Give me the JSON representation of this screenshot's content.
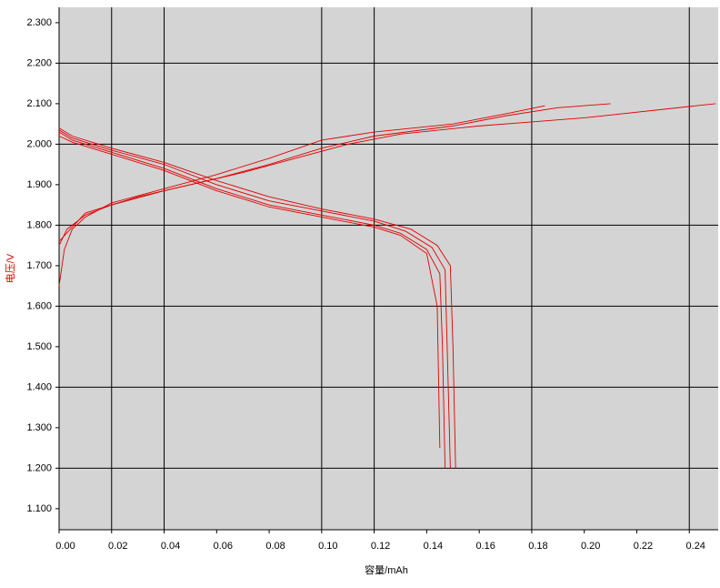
{
  "chart_data": {
    "type": "line",
    "x_label": "容量/mAh",
    "y_label": "电压/V",
    "xlim": [
      0,
      0.251
    ],
    "ylim": [
      1.048,
      2.338
    ],
    "xticks": [
      {
        "value": 0,
        "label": "0.00"
      },
      {
        "value": 0.02,
        "label": "0.02"
      },
      {
        "value": 0.04,
        "label": "0.04"
      },
      {
        "value": 0.06,
        "label": "0.06"
      },
      {
        "value": 0.08,
        "label": "0.08"
      },
      {
        "value": 0.1,
        "label": "0.10"
      },
      {
        "value": 0.12,
        "label": "0.12"
      },
      {
        "value": 0.14,
        "label": "0.14"
      },
      {
        "value": 0.16,
        "label": "0.16"
      },
      {
        "value": 0.18,
        "label": "0.18"
      },
      {
        "value": 0.2,
        "label": "0.20"
      },
      {
        "value": 0.22,
        "label": "0.22"
      },
      {
        "value": 0.24,
        "label": "0.24"
      }
    ],
    "yticks": [
      {
        "value": 1.1,
        "label": "1.100"
      },
      {
        "value": 1.2,
        "label": "1.200"
      },
      {
        "value": 1.3,
        "label": "1.300"
      },
      {
        "value": 1.4,
        "label": "1.400"
      },
      {
        "value": 1.5,
        "label": "1.500"
      },
      {
        "value": 1.6,
        "label": "1.600"
      },
      {
        "value": 1.7,
        "label": "1.700"
      },
      {
        "value": 1.8,
        "label": "1.800"
      },
      {
        "value": 1.9,
        "label": "1.900"
      },
      {
        "value": 2.0,
        "label": "2.000"
      },
      {
        "value": 2.1,
        "label": "2.100"
      },
      {
        "value": 2.2,
        "label": "2.200"
      },
      {
        "value": 2.3,
        "label": "2.300"
      }
    ],
    "x_grid": [
      0.02,
      0.04,
      0.1,
      0.12,
      0.18,
      0.24
    ],
    "y_grid": [
      1.2,
      1.4,
      1.6,
      1.8,
      2.0,
      2.2
    ],
    "series": [
      {
        "color": "#e00000",
        "x": [
          0,
          0.002,
          0.005,
          0.01,
          0.02,
          0.04,
          0.06,
          0.08,
          0.1,
          0.12,
          0.15,
          0.17,
          0.185
        ],
        "values": [
          1.65,
          1.74,
          1.79,
          1.82,
          1.855,
          1.89,
          1.925,
          1.965,
          2.01,
          2.03,
          2.05,
          2.075,
          2.095
        ]
      },
      {
        "color": "#e00000",
        "x": [
          0,
          0.003,
          0.01,
          0.02,
          0.04,
          0.06,
          0.08,
          0.1,
          0.12,
          0.15,
          0.17,
          0.19,
          0.21
        ],
        "values": [
          1.75,
          1.79,
          1.825,
          1.85,
          1.885,
          1.915,
          1.95,
          1.99,
          2.02,
          2.045,
          2.07,
          2.09,
          2.1
        ]
      },
      {
        "color": "#e00000",
        "x": [
          0,
          0.01,
          0.03,
          0.05,
          0.07,
          0.09,
          0.11,
          0.13,
          0.16,
          0.18,
          0.2,
          0.25
        ],
        "values": [
          1.76,
          1.83,
          1.87,
          1.9,
          1.93,
          1.965,
          2.0,
          2.025,
          2.045,
          2.055,
          2.065,
          2.1
        ]
      },
      {
        "color": "#e00000",
        "x": [
          0,
          0.005,
          0.02,
          0.04,
          0.06,
          0.08,
          0.1,
          0.12,
          0.13,
          0.14,
          0.145,
          0.146,
          0.147
        ],
        "values": [
          2.03,
          2.01,
          1.98,
          1.94,
          1.89,
          1.85,
          1.825,
          1.8,
          1.78,
          1.74,
          1.68,
          1.5,
          1.2
        ]
      },
      {
        "color": "#e00000",
        "x": [
          0,
          0.005,
          0.02,
          0.04,
          0.06,
          0.08,
          0.1,
          0.12,
          0.132,
          0.142,
          0.147,
          0.148,
          0.149
        ],
        "values": [
          2.035,
          2.015,
          1.985,
          1.95,
          1.9,
          1.86,
          1.835,
          1.81,
          1.785,
          1.745,
          1.69,
          1.45,
          1.2
        ]
      },
      {
        "color": "#e00000",
        "x": [
          0,
          0.005,
          0.02,
          0.04,
          0.06,
          0.08,
          0.1,
          0.12,
          0.134,
          0.144,
          0.149,
          0.15,
          0.151
        ],
        "values": [
          2.04,
          2.02,
          1.99,
          1.955,
          1.91,
          1.87,
          1.84,
          1.815,
          1.79,
          1.75,
          1.7,
          1.5,
          1.2
        ]
      },
      {
        "color": "#e00000",
        "x": [
          0,
          0.005,
          0.02,
          0.04,
          0.06,
          0.08,
          0.1,
          0.12,
          0.13,
          0.14,
          0.144,
          0.145
        ],
        "values": [
          2.02,
          2.005,
          1.975,
          1.935,
          1.885,
          1.845,
          1.82,
          1.795,
          1.775,
          1.73,
          1.6,
          1.25
        ]
      }
    ]
  }
}
